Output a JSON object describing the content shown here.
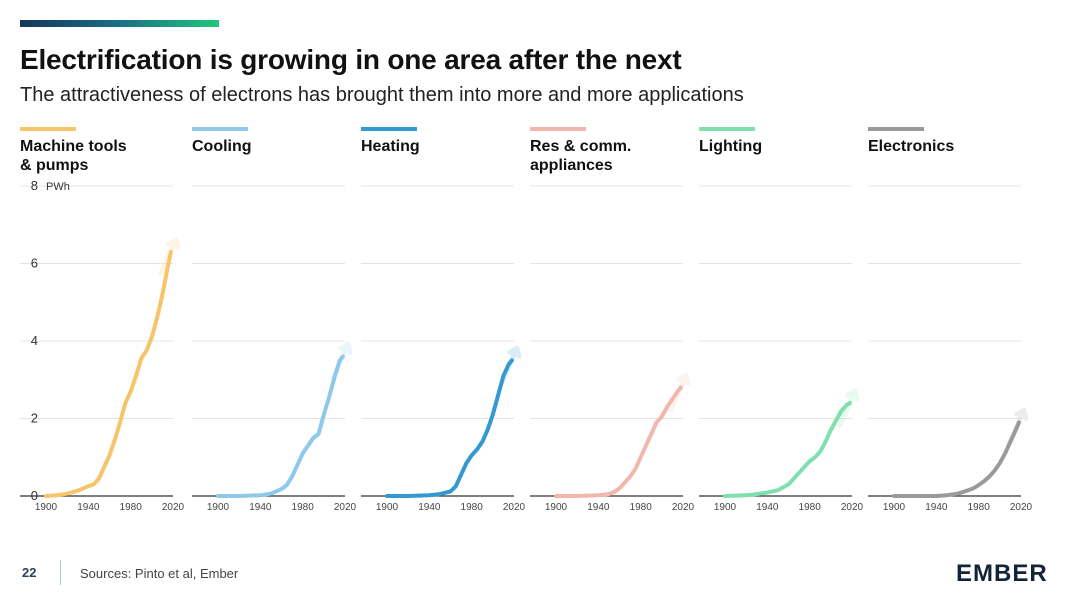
{
  "header": {
    "title": "Electrification is growing in one area after the next",
    "subtitle": "The attractiveness of electrons has brought them into more and more applications"
  },
  "footer": {
    "page_number": "22",
    "sources": "Sources: Pinto et al, Ember",
    "logo_text": "EMBER"
  },
  "chart_data": {
    "type": "line",
    "layout": "small-multiples",
    "ylabel": "PWh",
    "ylim": [
      0,
      8
    ],
    "yticks": [
      "0",
      "2",
      "4",
      "6",
      "8"
    ],
    "xlim": [
      1900,
      2020
    ],
    "xticks": [
      "1900",
      "1940",
      "1980",
      "2020"
    ],
    "grid": true,
    "series": [
      {
        "name": "Machine tools & pumps",
        "label_lines": [
          "Machine tools",
          "& pumps"
        ],
        "color": "#f5c46b",
        "x": [
          1900,
          1910,
          1920,
          1930,
          1940,
          1945,
          1950,
          1955,
          1960,
          1965,
          1970,
          1975,
          1980,
          1985,
          1990,
          1995,
          2000,
          2005,
          2010,
          2015,
          2018
        ],
        "values": [
          0.0,
          0.02,
          0.06,
          0.14,
          0.25,
          0.3,
          0.45,
          0.75,
          1.05,
          1.45,
          1.9,
          2.4,
          2.7,
          3.1,
          3.55,
          3.75,
          4.1,
          4.6,
          5.2,
          5.9,
          6.3
        ]
      },
      {
        "name": "Cooling",
        "label_lines": [
          "Cooling"
        ],
        "color": "#8ec9ec",
        "x": [
          1900,
          1920,
          1940,
          1950,
          1960,
          1965,
          1970,
          1975,
          1980,
          1985,
          1990,
          1995,
          2000,
          2005,
          2010,
          2015,
          2018
        ],
        "values": [
          0.0,
          0.0,
          0.02,
          0.06,
          0.18,
          0.28,
          0.5,
          0.8,
          1.1,
          1.3,
          1.5,
          1.6,
          2.1,
          2.55,
          3.05,
          3.5,
          3.6
        ]
      },
      {
        "name": "Heating",
        "label_lines": [
          "Heating"
        ],
        "color": "#3399d0",
        "x": [
          1900,
          1920,
          1940,
          1950,
          1960,
          1965,
          1970,
          1975,
          1980,
          1985,
          1990,
          1995,
          2000,
          2005,
          2010,
          2015,
          2018
        ],
        "values": [
          0.0,
          0.0,
          0.02,
          0.05,
          0.12,
          0.25,
          0.55,
          0.85,
          1.05,
          1.2,
          1.4,
          1.7,
          2.1,
          2.6,
          3.1,
          3.4,
          3.5
        ]
      },
      {
        "name": "Res & comm. appliances",
        "label_lines": [
          "Res & comm.",
          "appliances"
        ],
        "color": "#f3b6ad",
        "x": [
          1900,
          1920,
          1940,
          1950,
          1955,
          1960,
          1965,
          1970,
          1975,
          1980,
          1985,
          1990,
          1995,
          2000,
          2005,
          2010,
          2015,
          2018
        ],
        "values": [
          0.0,
          0.0,
          0.02,
          0.05,
          0.1,
          0.2,
          0.35,
          0.5,
          0.7,
          1.0,
          1.3,
          1.6,
          1.9,
          2.05,
          2.3,
          2.5,
          2.7,
          2.8
        ]
      },
      {
        "name": "Lighting",
        "label_lines": [
          "Lighting"
        ],
        "color": "#7fdfae",
        "x": [
          1900,
          1920,
          1930,
          1940,
          1950,
          1960,
          1965,
          1970,
          1975,
          1980,
          1985,
          1990,
          1995,
          2000,
          2005,
          2010,
          2015,
          2018
        ],
        "values": [
          0.0,
          0.02,
          0.05,
          0.09,
          0.15,
          0.3,
          0.45,
          0.6,
          0.75,
          0.9,
          1.0,
          1.15,
          1.4,
          1.7,
          1.95,
          2.2,
          2.35,
          2.4
        ]
      },
      {
        "name": "Electronics",
        "label_lines": [
          "Electronics"
        ],
        "color": "#9a9a9a",
        "x": [
          1900,
          1920,
          1940,
          1950,
          1960,
          1965,
          1970,
          1975,
          1980,
          1985,
          1990,
          1995,
          2000,
          2005,
          2010,
          2015,
          2018
        ],
        "values": [
          0.0,
          0.0,
          0.0,
          0.02,
          0.06,
          0.1,
          0.15,
          0.2,
          0.28,
          0.38,
          0.5,
          0.65,
          0.85,
          1.1,
          1.4,
          1.7,
          1.9
        ]
      }
    ]
  }
}
